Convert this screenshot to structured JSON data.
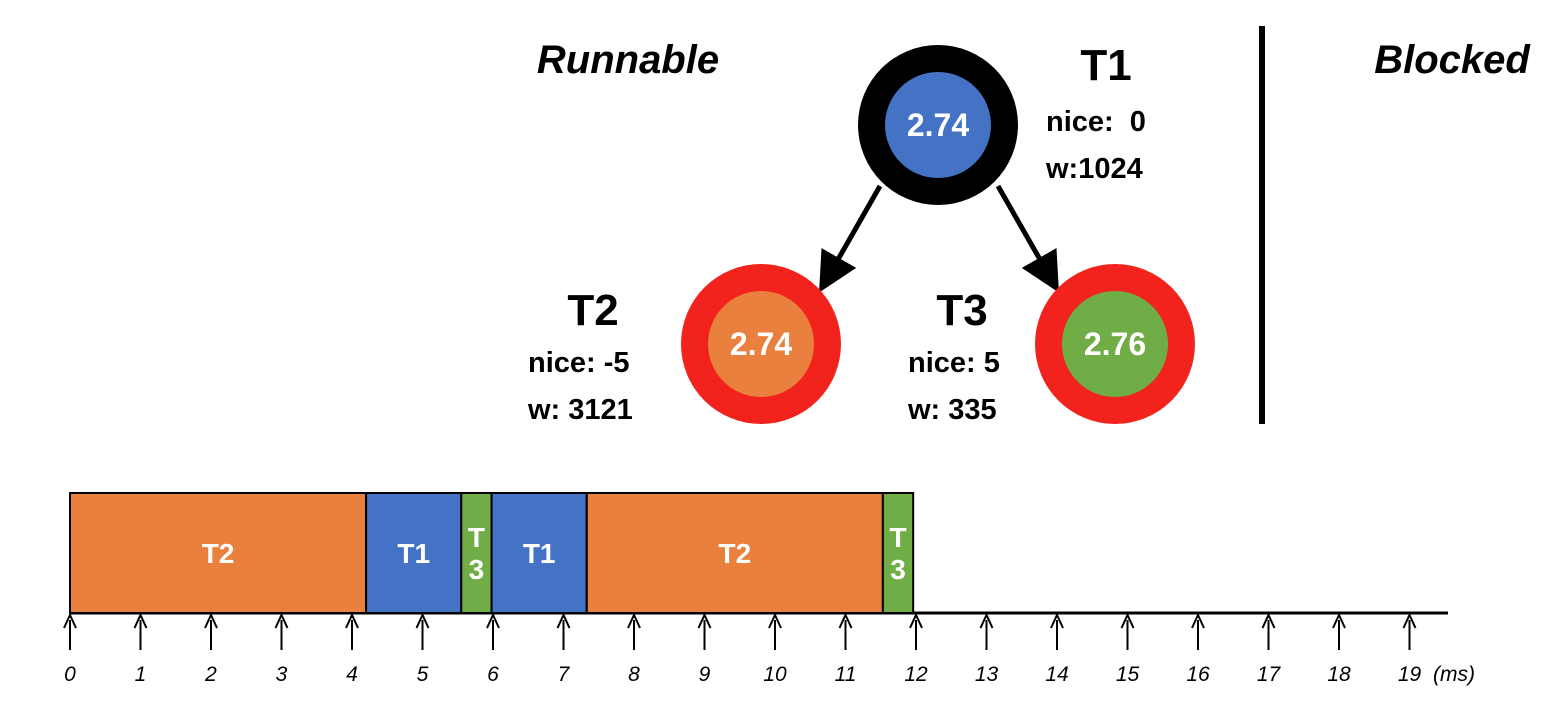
{
  "queues": {
    "runnable_label": "Runnable",
    "blocked_label": "Blocked"
  },
  "tree": {
    "nodes": [
      {
        "id": "t1",
        "task": "T1",
        "vruntime": "2.74",
        "nice_text": "nice:  0",
        "weight_text": "w:1024",
        "ring_color": "#000000",
        "fill_color": "#4472C4"
      },
      {
        "id": "t2",
        "task": "T2",
        "vruntime": "2.74",
        "nice_text": "nice: -5",
        "weight_text": "w: 3121",
        "ring_color": "#F2231C",
        "fill_color": "#E9803D"
      },
      {
        "id": "t3",
        "task": "T3",
        "vruntime": "2.76",
        "nice_text": "nice: 5",
        "weight_text": "w: 335",
        "ring_color": "#F2231C",
        "fill_color": "#70AD47"
      }
    ],
    "edges": [
      {
        "from": "t1",
        "to": "t2"
      },
      {
        "from": "t1",
        "to": "t3"
      }
    ]
  },
  "timeline": {
    "unit_label": "(ms)",
    "ticks": [
      0,
      1,
      2,
      3,
      4,
      5,
      6,
      7,
      8,
      9,
      10,
      11,
      12,
      13,
      14,
      15,
      16,
      17,
      18,
      19
    ],
    "segments": [
      {
        "task": "T2",
        "lines": [
          "T2"
        ],
        "start": 0,
        "end": 4.2,
        "color": "#E9803D"
      },
      {
        "task": "T1",
        "lines": [
          "T1"
        ],
        "start": 4.2,
        "end": 5.55,
        "color": "#4472C4"
      },
      {
        "task": "T3",
        "lines": [
          "T",
          "3"
        ],
        "start": 5.55,
        "end": 5.98,
        "color": "#70AD47"
      },
      {
        "task": "T1",
        "lines": [
          "T1"
        ],
        "start": 5.98,
        "end": 7.33,
        "color": "#4472C4"
      },
      {
        "task": "T2",
        "lines": [
          "T2"
        ],
        "start": 7.33,
        "end": 11.53,
        "color": "#E9803D"
      },
      {
        "task": "T3",
        "lines": [
          "T",
          "3"
        ],
        "start": 11.53,
        "end": 11.96,
        "color": "#70AD47"
      }
    ]
  }
}
